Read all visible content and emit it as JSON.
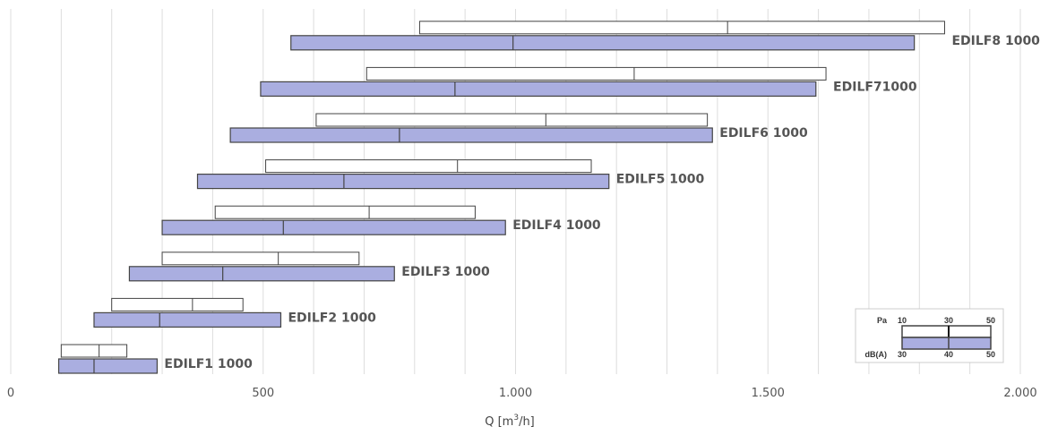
{
  "chart_data": {
    "type": "range-bar",
    "xlabel_prefix": "Q [m",
    "xlabel_sup": "3",
    "xlabel_suffix": "/h]",
    "xlim": [
      0,
      2000
    ],
    "xticks": [
      0,
      500,
      1000,
      1500,
      2000
    ],
    "xtick_labels": [
      "0",
      "500",
      "1.000",
      "1.500",
      "2.000"
    ],
    "grid": true,
    "colors": {
      "db_fill": "#aaaee0",
      "pa_fill": "#ffffff",
      "outline": "#444444",
      "grid": "#dddddd"
    },
    "series": [
      {
        "name": "EDILF1 1000",
        "pa": [
          100,
          175,
          230
        ],
        "db": [
          95,
          165,
          290
        ]
      },
      {
        "name": "EDILF2 1000",
        "pa": [
          200,
          360,
          460
        ],
        "db": [
          165,
          295,
          535
        ]
      },
      {
        "name": "EDILF3 1000",
        "pa": [
          300,
          530,
          690
        ],
        "db": [
          235,
          420,
          760
        ]
      },
      {
        "name": "EDILF4 1000",
        "pa": [
          405,
          710,
          920
        ],
        "db": [
          300,
          540,
          980
        ]
      },
      {
        "name": "EDILF5 1000",
        "pa": [
          505,
          885,
          1150
        ],
        "db": [
          370,
          660,
          1185
        ]
      },
      {
        "name": "EDILF6 1000",
        "pa": [
          605,
          1060,
          1380
        ],
        "db": [
          435,
          770,
          1390
        ]
      },
      {
        "name": "EDILF71000",
        "pa": [
          705,
          1235,
          1615
        ],
        "db": [
          495,
          880,
          1595
        ]
      },
      {
        "name": "EDILF8 1000",
        "pa": [
          810,
          1420,
          1850
        ],
        "db": [
          555,
          995,
          1790
        ]
      }
    ]
  },
  "legend": {
    "pa_label": "Pa",
    "pa_ticks": [
      "10",
      "30",
      "50"
    ],
    "db_label": "dB(A)",
    "db_ticks": [
      "30",
      "40",
      "50"
    ]
  }
}
